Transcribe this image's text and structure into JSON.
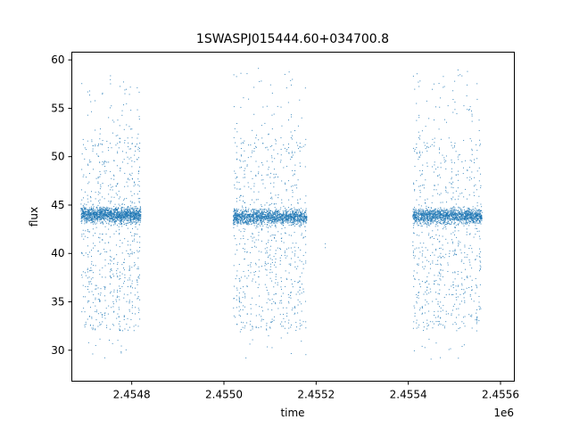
{
  "chart_data": {
    "type": "scatter",
    "title": "1SWASPJ015444.60+034700.8",
    "xlabel": "time",
    "ylabel": "flux",
    "x_offset_label": "1e6",
    "x_tick_values": [
      2.4548,
      2.455,
      2.4552,
      2.4554,
      2.4556
    ],
    "x_tick_labels": [
      "2.4548",
      "2.4550",
      "2.4552",
      "2.4554",
      "2.4556"
    ],
    "y_tick_values": [
      30,
      35,
      40,
      45,
      50,
      55,
      60
    ],
    "y_tick_labels": [
      "30",
      "35",
      "40",
      "45",
      "50",
      "55",
      "60"
    ],
    "xlim": [
      2.45467,
      2.45563
    ],
    "ylim": [
      26.8,
      60.8
    ],
    "grid": false,
    "marker_color": "#1f77b4",
    "series": [
      {
        "observing_windows": [
          {
            "x_start": 2.45469,
            "x_end": 2.45482,
            "baseline_flux": 44.0,
            "flux_range": [
              28.5,
              58.5
            ]
          },
          {
            "x_start": 2.45502,
            "x_end": 2.45518,
            "baseline_flux": 43.8,
            "flux_range": [
              29.0,
              59.2
            ]
          },
          {
            "x_start": 2.45541,
            "x_end": 2.45556,
            "baseline_flux": 43.9,
            "flux_range": [
              28.8,
              59.0
            ]
          }
        ],
        "isolated_points": [
          {
            "x": 2.45522,
            "y": 41.0
          },
          {
            "x": 2.45522,
            "y": 40.6
          },
          {
            "x": 2.45541,
            "y": 40.8
          },
          {
            "x": 2.45541,
            "y": 41.2
          }
        ]
      }
    ]
  }
}
